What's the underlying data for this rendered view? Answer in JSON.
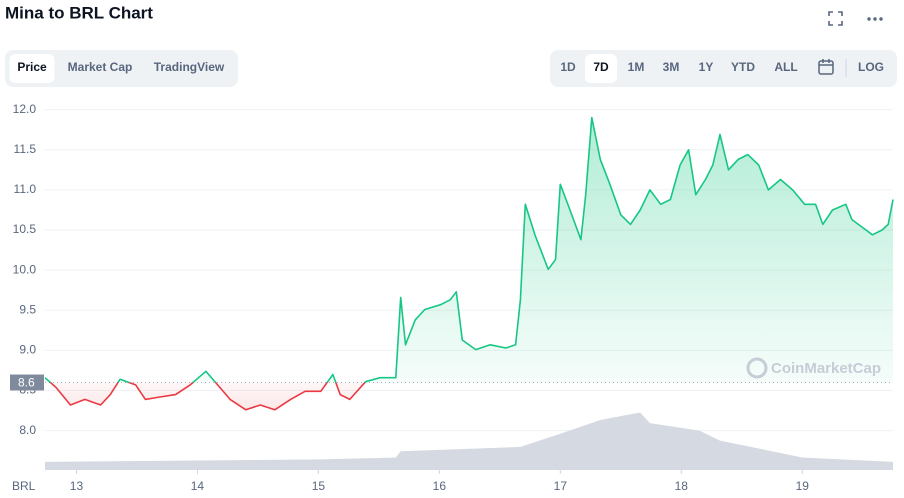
{
  "header": {
    "title": "Mina to BRL Chart",
    "tabs": [
      "Price",
      "Market Cap",
      "TradingView"
    ],
    "active_tab": 0,
    "ranges": [
      "1D",
      "7D",
      "1M",
      "3M",
      "1Y",
      "YTD",
      "ALL"
    ],
    "active_range": 1,
    "log": "LOG"
  },
  "chart_data": {
    "type": "line",
    "watermark": "CoinMarketCap",
    "xlabel": "BRL",
    "x": [
      12.74,
      12.83,
      12.95,
      13.07,
      13.2,
      13.28,
      13.36,
      13.49,
      13.57,
      13.69,
      13.82,
      13.94,
      14.07,
      14.15,
      14.27,
      14.4,
      14.52,
      14.64,
      14.77,
      14.89,
      15.02,
      15.12,
      15.18,
      15.26,
      15.39,
      15.51,
      15.64,
      15.68,
      15.72,
      15.8,
      15.88,
      16.01,
      16.09,
      16.14,
      16.19,
      16.3,
      16.42,
      16.55,
      16.63,
      16.67,
      16.71,
      16.79,
      16.9,
      16.96,
      17.0,
      17.08,
      17.17,
      17.21,
      17.26,
      17.33,
      17.41,
      17.5,
      17.58,
      17.66,
      17.74,
      17.83,
      17.91,
      17.99,
      18.06,
      18.12,
      18.2,
      18.26,
      18.32,
      18.39,
      18.47,
      18.55,
      18.64,
      18.72,
      18.82,
      18.92,
      19.02,
      19.11,
      19.17,
      19.25,
      19.36,
      19.41,
      19.5,
      19.58,
      19.66,
      19.71,
      19.75
    ],
    "series": [
      {
        "name": "Price",
        "color": "#16c784",
        "below_color": "#ea3943",
        "values": [
          8.66,
          8.54,
          8.32,
          8.39,
          8.32,
          8.45,
          8.64,
          8.57,
          8.39,
          8.42,
          8.45,
          8.57,
          8.74,
          8.6,
          8.39,
          8.26,
          8.32,
          8.26,
          8.39,
          8.49,
          8.49,
          8.7,
          8.45,
          8.39,
          8.61,
          8.66,
          8.66,
          9.66,
          9.07,
          9.38,
          9.51,
          9.57,
          9.63,
          9.73,
          9.13,
          9.01,
          9.07,
          9.03,
          9.07,
          9.63,
          10.82,
          10.44,
          10.01,
          10.13,
          11.07,
          10.75,
          10.38,
          10.94,
          11.9,
          11.38,
          11.07,
          10.69,
          10.57,
          10.75,
          11.0,
          10.82,
          10.88,
          11.31,
          11.5,
          10.94,
          11.13,
          11.31,
          11.69,
          11.25,
          11.38,
          11.44,
          11.31,
          11.0,
          11.13,
          11.0,
          10.82,
          10.82,
          10.57,
          10.75,
          10.82,
          10.63,
          10.53,
          10.44,
          10.5,
          10.57,
          10.88
        ]
      }
    ],
    "baseline": 8.6,
    "volume": {
      "color": "#d5d9e1",
      "x": [
        12.74,
        15.02,
        15.64,
        15.68,
        16.67,
        17.0,
        17.33,
        17.66,
        17.74,
        18.15,
        18.32,
        19.0,
        19.75
      ],
      "values": [
        13,
        17,
        20,
        30,
        37,
        58,
        80,
        92,
        75,
        63,
        47,
        20,
        13
      ],
      "lim": [
        0,
        160
      ]
    },
    "xlim": [
      12.74,
      19.75
    ],
    "xticks": [
      13,
      14,
      15,
      16,
      17,
      18,
      19
    ],
    "ylim": [
      7.51,
      12.12
    ],
    "yticks": [
      {
        "value": 8,
        "label": "8.0"
      },
      8.5,
      {
        "value": 9,
        "label": "9.0"
      },
      9.5,
      {
        "value": 10,
        "label": "10.0"
      },
      10.5,
      {
        "value": 11,
        "label": "11.0"
      },
      11.5,
      {
        "value": 12,
        "label": "12.0"
      }
    ],
    "grid": true
  }
}
